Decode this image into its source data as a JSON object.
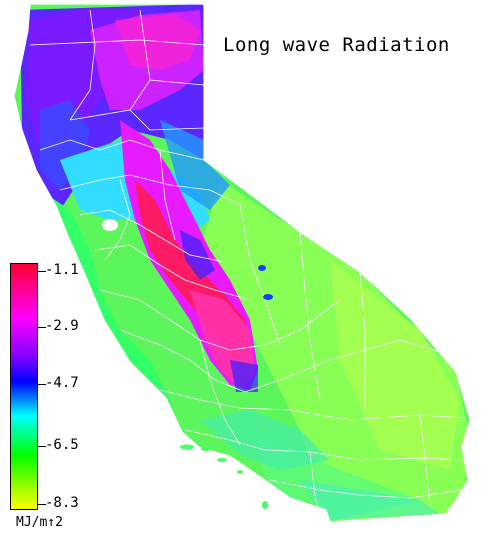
{
  "title": "Long wave Radiation",
  "units": "MJ/m↑2",
  "colorbar": {
    "ticks": [
      "-1.1",
      "-2.9",
      "-4.7",
      "-6.5",
      "-8.3"
    ],
    "min": -8.3,
    "max": -1.1,
    "colors": [
      "#ff0033",
      "#ff00ff",
      "#7f00ff",
      "#0000ff",
      "#00ffff",
      "#00ff00",
      "#ffff00"
    ]
  },
  "legend_colors": {
    "high": "#ff0033",
    "mid_high": "#ff00ff",
    "mid": "#0000ff",
    "mid_low": "#00ffff",
    "low_green": "#00ff00",
    "lowest": "#ffff00"
  }
}
